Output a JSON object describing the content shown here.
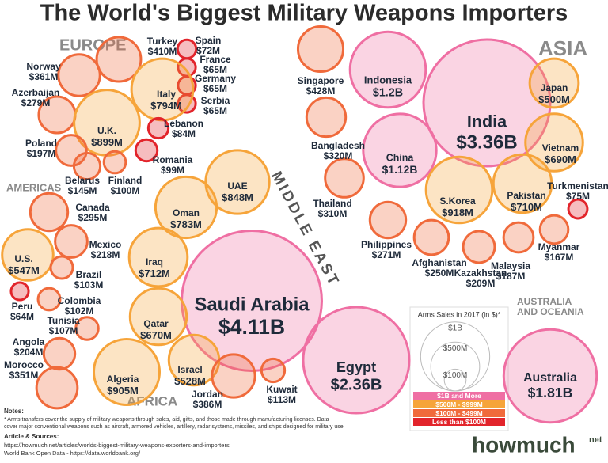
{
  "chart_data": {
    "type": "bubble",
    "title": "The World's Biggest Military Weapons Importers",
    "categories": [
      "Turkey",
      "Spain",
      "France",
      "Germany",
      "Serbia",
      "Norway",
      "Azerbaijan",
      "Italy",
      "U.K.",
      "Lebanon",
      "Poland",
      "Finland",
      "Romania",
      "Belarus",
      "Canada",
      "U.S.",
      "Mexico",
      "Brazil",
      "Peru",
      "Colombia",
      "Tunisia",
      "Angola",
      "Morocco",
      "Algeria",
      "UAE",
      "Oman",
      "Iraq",
      "Saudi Arabia",
      "Qatar",
      "Israel",
      "Jordan",
      "Kuwait",
      "Egypt",
      "Singapore",
      "Indonesia",
      "India",
      "Japan",
      "Bangladesh",
      "China",
      "Vietnam",
      "Turkmenistan",
      "Thailand",
      "S.Korea",
      "Pakistan",
      "Philippines",
      "Afghanistan",
      "Kazakhstan",
      "Malaysia",
      "Myanmar",
      "Australia"
    ],
    "values": [
      410,
      72,
      65,
      65,
      65,
      361,
      279,
      794,
      899,
      84,
      197,
      100,
      99,
      145,
      295,
      547,
      218,
      103,
      64,
      102,
      107,
      204,
      351,
      905,
      848,
      783,
      712,
      4110,
      670,
      528,
      386,
      113,
      2360,
      428,
      1200,
      3360,
      500,
      320,
      1120,
      690,
      75,
      310,
      918,
      710,
      271,
      250,
      209,
      187,
      167,
      1810
    ],
    "value_labels": [
      "$410M",
      "$72M",
      "$65M",
      "$65M",
      "$65M",
      "$361M",
      "$279M",
      "$794M",
      "$899M",
      "$84M",
      "$197M",
      "$100M",
      "$99M",
      "$145M",
      "$295M",
      "$547M",
      "$218M",
      "$103M",
      "$64M",
      "$102M",
      "$107M",
      "$204M",
      "$351M",
      "$905M",
      "$848M",
      "$783M",
      "$712M",
      "$4.11B",
      "$670M",
      "$528M",
      "$386M",
      "$113M",
      "$2.36B",
      "$428M",
      "$1.2B",
      "$3.36B",
      "$500M",
      "$320M",
      "$1.12B",
      "$690M",
      "$75M",
      "$310M",
      "$918M",
      "$710M",
      "$271M",
      "$250M",
      "$209M",
      "$187M",
      "$167M",
      "$1.81B"
    ],
    "colors": [
      "#f06a3b",
      "#e2242b",
      "#e2242b",
      "#e2242b",
      "#e2242b",
      "#f06a3b",
      "#f06a3b",
      "#f6a43a",
      "#f6a43a",
      "#e2242b",
      "#f06a3b",
      "#f06a3b",
      "#e2242b",
      "#f06a3b",
      "#f06a3b",
      "#f6a43a",
      "#f06a3b",
      "#f06a3b",
      "#e2242b",
      "#f06a3b",
      "#f06a3b",
      "#f06a3b",
      "#f06a3b",
      "#f6a43a",
      "#f6a43a",
      "#f6a43a",
      "#f6a43a",
      "#ef6fa3",
      "#f6a43a",
      "#f6a43a",
      "#f06a3b",
      "#f06a3b",
      "#ef6fa3",
      "#f06a3b",
      "#ef6fa3",
      "#ef6fa3",
      "#f6a43a",
      "#f06a3b",
      "#ef6fa3",
      "#f6a43a",
      "#e2242b",
      "#f06a3b",
      "#f6a43a",
      "#f6a43a",
      "#f06a3b",
      "#f06a3b",
      "#f06a3b",
      "#f06a3b",
      "#f06a3b",
      "#ef6fa3"
    ],
    "annotations": [
      "EUROPE",
      "ASIA",
      "AMERICAS",
      "MIDDLE EAST",
      "AFRICA",
      "AUSTRALIA",
      "AND OCEANIA"
    ],
    "legend": {
      "title": "Arms Sales in 2017 (in $)*",
      "sizes": [
        {
          "value": 1000,
          "label": "$1B"
        },
        {
          "value": 500,
          "label": "$500M"
        },
        {
          "value": 100,
          "label": "$100M"
        }
      ],
      "tiers": [
        {
          "label": "$1B and More",
          "color": "#ef6fa3"
        },
        {
          "label": "$500M - $999M",
          "color": "#f6a43a"
        },
        {
          "label": "$100M - $499M",
          "color": "#f06a3b"
        },
        {
          "label": "Less than $100M",
          "color": "#e2242b"
        }
      ]
    }
  },
  "notes": {
    "heading": "Notes:",
    "lines": [
      "* Arms transfers cover the supply of military weapons through sales, aid, gifts, and those made through manufacturing licenses. Data",
      "cover major conventional weapons such as aircraft, armored vehicles, artillery, radar systems, missiles, and ships designed for military use"
    ]
  },
  "sources": {
    "heading": "Article & Sources:",
    "lines": [
      "https://howmuch.net/articles/worlds-biggest-military-weapons-exporters-and-importers",
      "World Bank Open Data - https://data.worldbank.org/"
    ]
  },
  "logo": {
    "name": "howmuch",
    "suffix": "net"
  }
}
